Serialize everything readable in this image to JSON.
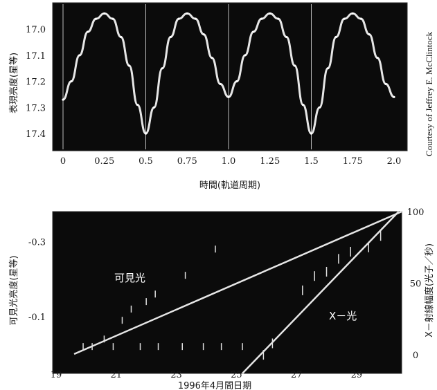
{
  "credit": "Courtesy of Jeffrey E. McClintock",
  "colors": {
    "panel_bg": "#0b0b0b",
    "trace": "#e6e6e6",
    "frame": "#2b2b2b",
    "text": "#1a1a1a"
  },
  "chart_data": [
    {
      "type": "scatter",
      "xlabel": "時間(軌道周期)",
      "ylabel": "表現亮度(星等)",
      "xlim": [
        0,
        2.0
      ],
      "ylim": [
        17.45,
        16.92
      ],
      "y_inverted": true,
      "x_ticks": [
        "0",
        "0.25",
        "0.5",
        "0.75",
        "1.0",
        "1.25",
        "1.5",
        "1.75",
        "2.0"
      ],
      "y_ticks": [
        "17.0",
        "17.1",
        "17.2",
        "17.3",
        "17.4"
      ],
      "vertical_markers": [
        0,
        0.5,
        1.0,
        1.5
      ],
      "series": [
        {
          "x": [
            0,
            0.05,
            0.1,
            0.15,
            0.2,
            0.25,
            0.3,
            0.35,
            0.4,
            0.45,
            0.5,
            0.55,
            0.6,
            0.65,
            0.7,
            0.75,
            0.8,
            0.85,
            0.9,
            0.95,
            1.0,
            1.05,
            1.1,
            1.15,
            1.2,
            1.25,
            1.3,
            1.35,
            1.4,
            1.45,
            1.5,
            1.55,
            1.6,
            1.65,
            1.7,
            1.75,
            1.8,
            1.85,
            1.9,
            1.95,
            2.0
          ],
          "y": [
            17.27,
            17.2,
            17.1,
            17.01,
            16.96,
            16.94,
            16.96,
            17.03,
            17.14,
            17.29,
            17.4,
            17.3,
            17.15,
            17.03,
            16.96,
            16.94,
            16.96,
            17.02,
            17.11,
            17.21,
            17.26,
            17.2,
            17.1,
            17.01,
            16.96,
            16.94,
            16.96,
            17.03,
            17.14,
            17.29,
            17.4,
            17.3,
            17.15,
            17.03,
            16.96,
            16.94,
            16.96,
            17.02,
            17.11,
            17.21,
            17.26
          ]
        }
      ]
    },
    {
      "type": "scatter",
      "xlabel": "1996年4月間日期",
      "ylabel": "可見光亮度(星等)",
      "y2label": "X－射線幅度(光子／秒)",
      "xlim": [
        19,
        30.5
      ],
      "x_ticks": [
        "19",
        "21",
        "23",
        "25",
        "27",
        "29"
      ],
      "y_ticks": [
        {
          "label": "-0.3",
          "value": -0.3
        },
        {
          "label": "-0.1",
          "value": -0.1
        }
      ],
      "ylim": [
        0.0,
        -0.38
      ],
      "y2_ticks": [
        {
          "label": "100",
          "value": 100
        },
        {
          "label": "50",
          "value": 50
        },
        {
          "label": "0",
          "value": 0
        }
      ],
      "y2lim": [
        -13,
        100
      ],
      "series": [
        {
          "name": "可見光",
          "axis": "left",
          "x": [
            19.6,
            30.5
          ],
          "y": [
            0.0,
            -0.38
          ]
        },
        {
          "name": "X－光",
          "axis": "right",
          "x": [
            25.2,
            30.4
          ],
          "y2": [
            -13,
            100
          ]
        }
      ],
      "points": [
        {
          "x": 19.9,
          "y": -0.02
        },
        {
          "x": 20.2,
          "y": -0.02
        },
        {
          "x": 20.6,
          "y": -0.04
        },
        {
          "x": 21.2,
          "y": -0.09
        },
        {
          "x": 21.5,
          "y": -0.12
        },
        {
          "x": 22.0,
          "y": -0.14
        },
        {
          "x": 22.3,
          "y": -0.16
        },
        {
          "x": 23.3,
          "y": -0.21
        },
        {
          "x": 24.3,
          "y": -0.28
        },
        {
          "x": 20.9,
          "y": -0.02
        },
        {
          "x": 21.8,
          "y": -0.02
        },
        {
          "x": 22.4,
          "y": -0.02
        },
        {
          "x": 23.2,
          "y": -0.02
        },
        {
          "x": 23.9,
          "y": -0.02
        },
        {
          "x": 24.5,
          "y": -0.02
        },
        {
          "x": 25.2,
          "y": -0.02
        }
      ],
      "xray_points": [
        {
          "x": 25.9,
          "y2": 0
        },
        {
          "x": 26.2,
          "y2": 8
        },
        {
          "x": 27.2,
          "y2": 45
        },
        {
          "x": 27.6,
          "y2": 55
        },
        {
          "x": 28.0,
          "y2": 58
        },
        {
          "x": 28.4,
          "y2": 67
        },
        {
          "x": 28.8,
          "y2": 72
        },
        {
          "x": 29.4,
          "y2": 75
        },
        {
          "x": 29.8,
          "y2": 83
        }
      ]
    }
  ]
}
